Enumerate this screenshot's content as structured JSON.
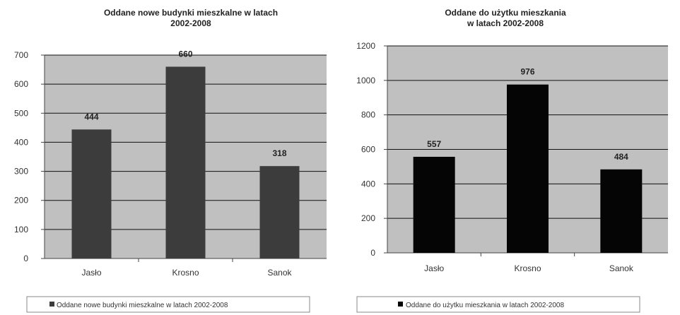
{
  "chart_data": [
    {
      "type": "bar",
      "title_lines": [
        "Oddane nowe budynki mieszkalne w latach",
        "2002-2008"
      ],
      "categories": [
        "Jasło",
        "Krosno",
        "Sanok"
      ],
      "series": [
        {
          "name": "Oddane nowe budynki mieszkalne w latach 2002-2008",
          "values": [
            444,
            660,
            318
          ],
          "color": "#3c3c3c"
        }
      ],
      "data_labels": [
        "444",
        "660",
        "318"
      ],
      "ylim": [
        0,
        700
      ],
      "yticks": [
        0,
        100,
        200,
        300,
        400,
        500,
        600,
        700
      ],
      "grid": true,
      "plot_bg": "#c0c0c0",
      "legend_position": "bottom"
    },
    {
      "type": "bar",
      "title_lines": [
        "Oddane do użytku mieszkania",
        "w latach 2002-2008"
      ],
      "categories": [
        "Jasło",
        "Krosno",
        "Sanok"
      ],
      "series": [
        {
          "name": "Oddane do użytku mieszkania w latach 2002-2008",
          "values": [
            557,
            976,
            484
          ],
          "color": "#050505"
        }
      ],
      "data_labels": [
        "557",
        "976",
        "484"
      ],
      "ylim": [
        0,
        1200
      ],
      "yticks": [
        0,
        200,
        400,
        600,
        800,
        1000,
        1200
      ],
      "grid": true,
      "plot_bg": "#c0c0c0",
      "legend_position": "bottom"
    }
  ]
}
